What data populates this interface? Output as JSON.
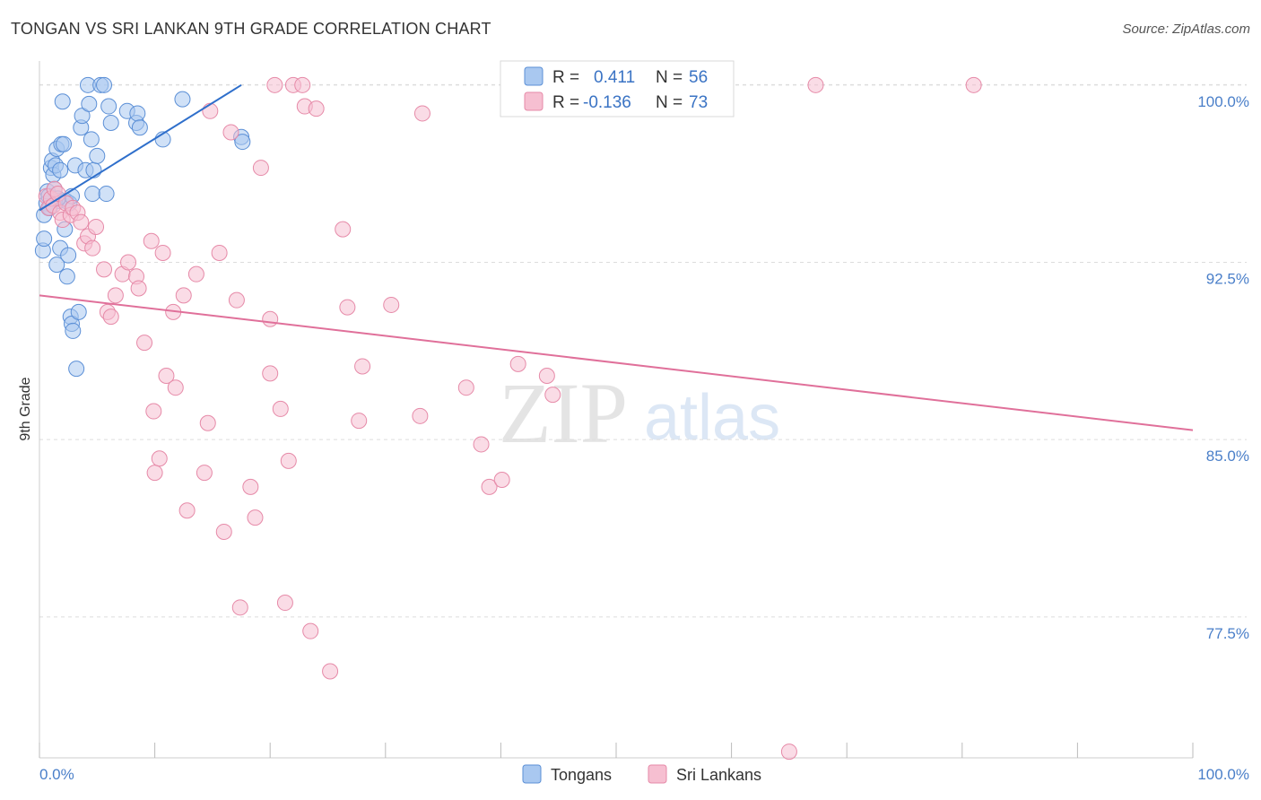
{
  "header": {
    "title": "TONGAN VS SRI LANKAN 9TH GRADE CORRELATION CHART",
    "source": "Source: ZipAtlas.com"
  },
  "watermark": {
    "zip": "ZIP",
    "atlas": "atlas"
  },
  "colors": {
    "tongan_fill": "#a9c8f0",
    "tongan_stroke": "#5b8fd6",
    "tongan_line": "#2f6fcb",
    "srilankan_fill": "#f6bfd1",
    "srilankan_stroke": "#e68aa8",
    "srilankan_line": "#e0709a",
    "grid": "#dddddd",
    "axis_text": "#4a7fc9"
  },
  "legend": {
    "rows": [
      {
        "r_label": "R =",
        "r_value": "0.411",
        "n_label": "N =",
        "n_value": "56"
      },
      {
        "r_label": "R =",
        "r_value": "-0.136",
        "n_label": "N =",
        "n_value": "73"
      }
    ]
  },
  "bottom_legend": {
    "items": [
      "Tongans",
      "Sri Lankans"
    ]
  },
  "chart_data": {
    "type": "scatter",
    "title": "TONGAN VS SRI LANKAN 9TH GRADE CORRELATION CHART",
    "xlabel": "",
    "ylabel": "9th Grade",
    "xlim": [
      0,
      100
    ],
    "ylim": [
      71.5,
      100.6
    ],
    "x_tick_labels": [
      "0.0%",
      "100.0%"
    ],
    "y_ticks": [
      100.0,
      92.5,
      85.0,
      77.5
    ],
    "y_tick_labels": [
      "100.0%",
      "92.5%",
      "85.0%",
      "77.5%"
    ],
    "grid": true,
    "legend_position": "top-center",
    "series": [
      {
        "name": "Tongans",
        "r": 0.411,
        "n": 56,
        "trend": {
          "x": [
            0.0,
            17.5
          ],
          "y": [
            94.7,
            100.0
          ]
        },
        "points": [
          [
            0.3,
            93.0
          ],
          [
            0.4,
            94.5
          ],
          [
            0.4,
            93.5
          ],
          [
            0.6,
            95.0
          ],
          [
            0.7,
            95.5
          ],
          [
            0.8,
            95.3
          ],
          [
            0.9,
            94.8
          ],
          [
            1.0,
            96.5
          ],
          [
            1.1,
            96.8
          ],
          [
            1.2,
            96.2
          ],
          [
            1.3,
            95.6
          ],
          [
            1.4,
            96.6
          ],
          [
            1.5,
            97.3
          ],
          [
            1.5,
            92.4
          ],
          [
            1.7,
            95.1
          ],
          [
            1.8,
            93.1
          ],
          [
            1.8,
            96.4
          ],
          [
            1.9,
            97.5
          ],
          [
            2.0,
            99.3
          ],
          [
            2.1,
            97.5
          ],
          [
            2.2,
            93.9
          ],
          [
            2.3,
            95.1
          ],
          [
            2.4,
            91.9
          ],
          [
            2.5,
            92.8
          ],
          [
            2.6,
            95.0
          ],
          [
            2.7,
            90.2
          ],
          [
            2.8,
            95.3
          ],
          [
            2.8,
            89.9
          ],
          [
            2.9,
            89.6
          ],
          [
            3.1,
            96.6
          ],
          [
            3.2,
            88.0
          ],
          [
            3.4,
            90.4
          ],
          [
            3.6,
            98.2
          ],
          [
            3.7,
            98.7
          ],
          [
            4.0,
            96.4
          ],
          [
            4.2,
            100.0
          ],
          [
            4.3,
            99.2
          ],
          [
            4.5,
            97.7
          ],
          [
            4.6,
            95.4
          ],
          [
            4.7,
            96.4
          ],
          [
            5.0,
            97.0
          ],
          [
            5.3,
            100.0
          ],
          [
            5.6,
            100.0
          ],
          [
            5.8,
            95.4
          ],
          [
            6.0,
            99.1
          ],
          [
            6.2,
            98.4
          ],
          [
            7.6,
            98.9
          ],
          [
            8.4,
            98.4
          ],
          [
            8.5,
            98.8
          ],
          [
            8.7,
            98.2
          ],
          [
            10.7,
            97.7
          ],
          [
            12.4,
            99.4
          ],
          [
            17.5,
            97.8
          ],
          [
            17.6,
            97.6
          ],
          [
            0.8,
            94.8
          ],
          [
            1.6,
            95.2
          ]
        ]
      },
      {
        "name": "Sri Lankans",
        "r": -0.136,
        "n": 73,
        "trend": {
          "x": [
            0.0,
            100.0
          ],
          "y": [
            91.1,
            85.4
          ]
        },
        "points": [
          [
            0.6,
            95.3
          ],
          [
            0.8,
            94.8
          ],
          [
            1.0,
            95.2
          ],
          [
            1.2,
            94.9
          ],
          [
            1.3,
            95.6
          ],
          [
            1.6,
            95.4
          ],
          [
            1.8,
            94.6
          ],
          [
            2.0,
            94.3
          ],
          [
            2.3,
            95.0
          ],
          [
            2.7,
            94.5
          ],
          [
            2.9,
            94.8
          ],
          [
            3.3,
            94.6
          ],
          [
            3.6,
            94.2
          ],
          [
            3.9,
            93.3
          ],
          [
            4.2,
            93.6
          ],
          [
            4.6,
            93.1
          ],
          [
            4.9,
            94.0
          ],
          [
            5.6,
            92.2
          ],
          [
            5.9,
            90.4
          ],
          [
            6.2,
            90.2
          ],
          [
            6.6,
            91.1
          ],
          [
            7.2,
            92.0
          ],
          [
            7.7,
            92.5
          ],
          [
            8.4,
            91.9
          ],
          [
            8.6,
            91.4
          ],
          [
            9.1,
            89.1
          ],
          [
            9.7,
            93.4
          ],
          [
            9.9,
            86.2
          ],
          [
            10.0,
            83.6
          ],
          [
            10.4,
            84.2
          ],
          [
            10.7,
            92.9
          ],
          [
            11.0,
            87.7
          ],
          [
            11.6,
            90.4
          ],
          [
            11.8,
            87.2
          ],
          [
            12.5,
            91.1
          ],
          [
            12.8,
            82.0
          ],
          [
            13.6,
            92.0
          ],
          [
            14.3,
            83.6
          ],
          [
            14.6,
            85.7
          ],
          [
            14.8,
            98.9
          ],
          [
            15.6,
            92.9
          ],
          [
            16.0,
            81.1
          ],
          [
            16.6,
            98.0
          ],
          [
            17.1,
            90.9
          ],
          [
            17.4,
            77.9
          ],
          [
            18.3,
            83.0
          ],
          [
            18.7,
            81.7
          ],
          [
            19.2,
            96.5
          ],
          [
            20.0,
            90.1
          ],
          [
            20.0,
            87.8
          ],
          [
            20.4,
            100.0
          ],
          [
            20.9,
            86.3
          ],
          [
            21.3,
            78.1
          ],
          [
            21.6,
            84.1
          ],
          [
            22.0,
            100.0
          ],
          [
            22.8,
            100.0
          ],
          [
            23.0,
            99.1
          ],
          [
            23.5,
            76.9
          ],
          [
            24.0,
            99.0
          ],
          [
            25.2,
            75.2
          ],
          [
            26.3,
            93.9
          ],
          [
            26.7,
            90.6
          ],
          [
            27.7,
            85.8
          ],
          [
            28.0,
            88.1
          ],
          [
            30.5,
            90.7
          ],
          [
            33.0,
            86.0
          ],
          [
            33.2,
            98.8
          ],
          [
            37.0,
            87.2
          ],
          [
            38.3,
            84.8
          ],
          [
            39.0,
            83.0
          ],
          [
            40.1,
            83.3
          ],
          [
            41.5,
            88.2
          ],
          [
            44.0,
            87.7
          ]
        ],
        "extra_points": [
          [
            44.5,
            86.9
          ],
          [
            65.0,
            71.8
          ],
          [
            67.3,
            100.0
          ],
          [
            81.0,
            100.0
          ]
        ]
      }
    ]
  }
}
